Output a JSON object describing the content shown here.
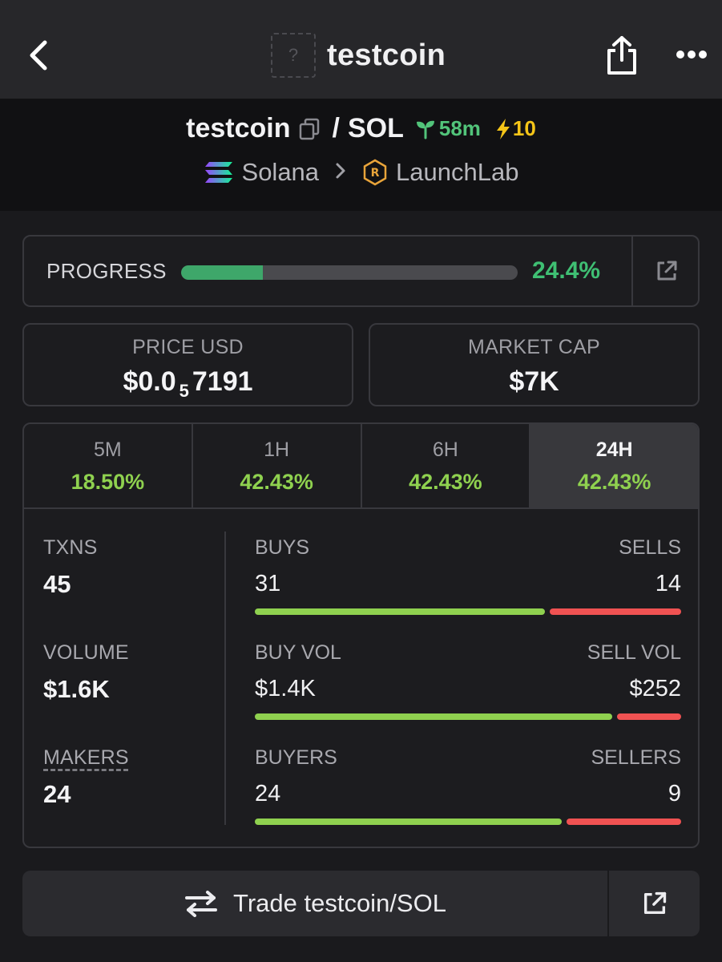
{
  "header": {
    "title": "testcoin",
    "token_placeholder": "?",
    "icons": {
      "back": "chevron-left-icon",
      "share": "share-icon",
      "more": "more-horizontal-icon"
    }
  },
  "pair": {
    "base": "testcoin",
    "slash": "/",
    "quote": "SOL",
    "age": "58m",
    "boosts": "10",
    "chain": "Solana",
    "dex": "LaunchLab",
    "colors": {
      "age": "#52c47a",
      "boost": "#f5c518"
    }
  },
  "progress": {
    "label": "PROGRESS",
    "value_text": "24.4%",
    "fraction": 0.244
  },
  "price": {
    "label": "PRICE USD",
    "prefix": "$0.0",
    "zeros": "5",
    "digits": "7191"
  },
  "market_cap": {
    "label": "MARKET CAP",
    "value": "$7K"
  },
  "tabs": [
    {
      "label": "5M",
      "value": "18.50%"
    },
    {
      "label": "1H",
      "value": "42.43%"
    },
    {
      "label": "6H",
      "value": "42.43%"
    },
    {
      "label": "24H",
      "value": "42.43%",
      "active": true
    }
  ],
  "metrics": {
    "txns": {
      "label": "TXNS",
      "value": "45"
    },
    "volume": {
      "label": "VOLUME",
      "value": "$1.6K"
    },
    "makers": {
      "label": "MAKERS",
      "value": "24"
    }
  },
  "splits": {
    "txns": {
      "left_label": "BUYS",
      "right_label": "SELLS",
      "left_value": "31",
      "right_value": "14",
      "left_count": 31,
      "right_count": 14
    },
    "volume": {
      "left_label": "BUY VOL",
      "right_label": "SELL VOL",
      "left_value": "$1.4K",
      "right_value": "$252",
      "left_count": 1400,
      "right_count": 252
    },
    "makers": {
      "left_label": "BUYERS",
      "right_label": "SELLERS",
      "left_value": "24",
      "right_value": "9",
      "left_count": 24,
      "right_count": 9
    }
  },
  "trade": {
    "label": "Trade testcoin/SOL"
  },
  "colors": {
    "positive": "#8fd14f",
    "negative": "#f05252",
    "progress": "#3ea76a"
  }
}
